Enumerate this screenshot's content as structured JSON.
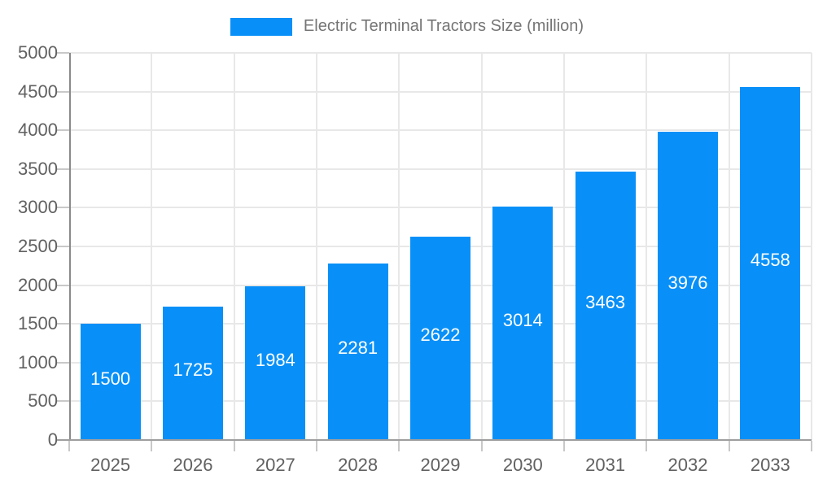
{
  "legend": {
    "label": "Electric Terminal Tractors Size (million)"
  },
  "colors": {
    "bar": "#0890f8",
    "bar_label": "#ffffff",
    "legend_text": "#757575",
    "axis_label": "#616161",
    "grid_line": "#e8e8e8",
    "axis_line": "#9e9e9e",
    "background": "#ffffff"
  },
  "chart_data": {
    "type": "bar",
    "categories": [
      "2025",
      "2026",
      "2027",
      "2028",
      "2029",
      "2030",
      "2031",
      "2032",
      "2033"
    ],
    "series": [
      {
        "name": "Electric Terminal Tractors Size (million)",
        "values": [
          1500,
          1725,
          1984,
          2281,
          2622,
          3014,
          3463,
          3976,
          4558
        ]
      }
    ],
    "title": "",
    "xlabel": "",
    "ylabel": "",
    "ylim": [
      0,
      5000
    ],
    "ytick_step": 500,
    "grid": true,
    "legend_position": "top",
    "bar_value_labels": true
  }
}
